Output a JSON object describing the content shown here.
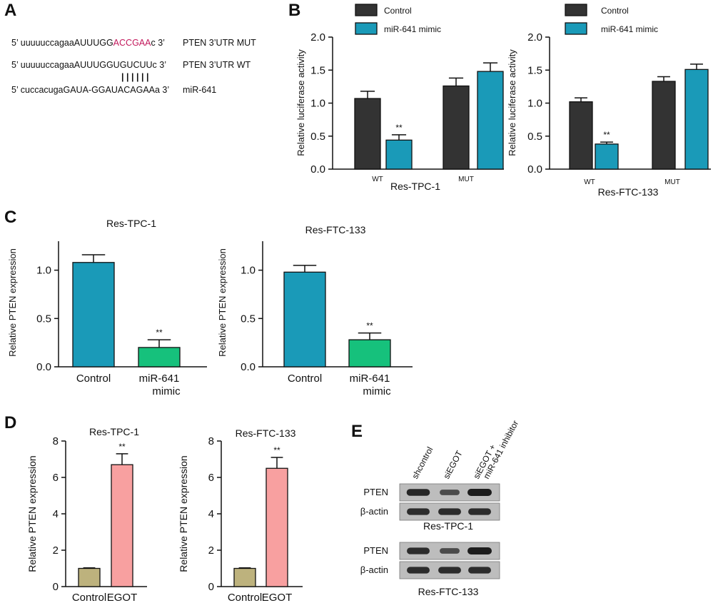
{
  "panel_letters": {
    "a": "A",
    "b": "B",
    "c": "C",
    "d": "D",
    "e": "E"
  },
  "panel_a": {
    "rows": [
      {
        "prefix": "5’ uuuuuccagaaAUUUGG",
        "highlight": "ACCGAA",
        "suffix": "c 3’",
        "label": "PTEN 3’UTR MUT"
      },
      {
        "prefix": "5’ uuuuuccagaaAUUUGGUGUCUUc 3’",
        "highlight": "",
        "suffix": "",
        "label": "PTEN 3’UTR WT"
      },
      {
        "prefix": "5’ cuccacugaGAUA-GGAUACAGAAa 3’",
        "highlight": "",
        "suffix": "",
        "label": "miR-641"
      }
    ],
    "pairing_lines": "||||||",
    "highlight_color": "#C2185B"
  },
  "colors": {
    "control_dark": "#333333",
    "mimic_blue": "#1A9AB8",
    "control_blue": "#1A9AB8",
    "mimic_green": "#16C17C",
    "egot_control": "#BDB27D",
    "egot": "#F8A0A0"
  },
  "chart_data": [
    {
      "panel": "B",
      "type": "bar",
      "title": "Res-TPC-1",
      "xlabel": "",
      "ylabel": "Relative luciferase activity",
      "ylim": [
        0,
        2.0
      ],
      "yticks": [
        "0.0",
        "0.5",
        "1.0",
        "1.5",
        "2.0"
      ],
      "categories": [
        "WT",
        "MUT"
      ],
      "legend": [
        "Control",
        "miR-641 mimic"
      ],
      "series": [
        {
          "name": "Control",
          "values": [
            1.07,
            1.26
          ],
          "errors": [
            0.11,
            0.12
          ]
        },
        {
          "name": "miR-641 mimic",
          "values": [
            0.44,
            1.48
          ],
          "errors": [
            0.08,
            0.13
          ]
        }
      ],
      "annotations": [
        {
          "text": "**",
          "category": "WT",
          "series": "miR-641 mimic"
        }
      ]
    },
    {
      "panel": "B",
      "type": "bar",
      "title": "Res-FTC-133",
      "xlabel": "",
      "ylabel": "Relative luciferase activity",
      "ylim": [
        0,
        2.0
      ],
      "yticks": [
        "0.0",
        "0.5",
        "1.0",
        "1.5",
        "2.0"
      ],
      "categories": [
        "WT",
        "MUT"
      ],
      "legend": [
        "Control",
        "miR-641 mimic"
      ],
      "series": [
        {
          "name": "Control",
          "values": [
            1.02,
            1.33
          ],
          "errors": [
            0.06,
            0.07
          ]
        },
        {
          "name": "miR-641 mimic",
          "values": [
            0.38,
            1.51
          ],
          "errors": [
            0.03,
            0.08
          ]
        }
      ],
      "annotations": [
        {
          "text": "**",
          "category": "WT",
          "series": "miR-641 mimic"
        }
      ]
    },
    {
      "panel": "C",
      "type": "bar",
      "title": "Res-TPC-1",
      "xlabel": "",
      "ylabel": "Relative PTEN expression",
      "ylim": [
        0,
        1.3
      ],
      "yticks": [
        "0.0",
        "0.5",
        "1.0"
      ],
      "categories": [
        "Control",
        "miR-641\nmimic"
      ],
      "series": [
        {
          "name": "Relative PTEN expression",
          "values": [
            1.08,
            0.2
          ],
          "errors": [
            0.08,
            0.08
          ]
        }
      ],
      "annotations": [
        {
          "text": "**",
          "category": "miR-641\nmimic"
        }
      ]
    },
    {
      "panel": "C",
      "type": "bar",
      "title": "Res-FTC-133",
      "xlabel": "",
      "ylabel": "Relative PTEN expression",
      "ylim": [
        0,
        1.3
      ],
      "yticks": [
        "0.0",
        "0.5",
        "1.0"
      ],
      "categories": [
        "Control",
        "miR-641\nmimic"
      ],
      "series": [
        {
          "name": "Relative PTEN expression",
          "values": [
            0.98,
            0.28
          ],
          "errors": [
            0.07,
            0.07
          ]
        }
      ],
      "annotations": [
        {
          "text": "**",
          "category": "miR-641\nmimic"
        }
      ]
    },
    {
      "panel": "D",
      "type": "bar",
      "title": "Res-TPC-1",
      "xlabel": "",
      "ylabel": "Relative PTEN expression",
      "ylim": [
        0,
        8
      ],
      "yticks": [
        "0",
        "2",
        "4",
        "6",
        "8"
      ],
      "categories": [
        "Control",
        "EGOT"
      ],
      "series": [
        {
          "name": "Relative PTEN expression",
          "values": [
            1.0,
            6.7
          ],
          "errors": [
            0.03,
            0.6
          ]
        }
      ],
      "annotations": [
        {
          "text": "**",
          "category": "EGOT"
        }
      ]
    },
    {
      "panel": "D",
      "type": "bar",
      "title": "Res-FTC-133",
      "xlabel": "",
      "ylabel": "Relative PTEN expression",
      "ylim": [
        0,
        8
      ],
      "yticks": [
        "0",
        "2",
        "4",
        "6",
        "8"
      ],
      "categories": [
        "Control",
        "EGOT"
      ],
      "series": [
        {
          "name": "Relative PTEN expression",
          "values": [
            1.0,
            6.5
          ],
          "errors": [
            0.03,
            0.6
          ]
        }
      ],
      "annotations": [
        {
          "text": "**",
          "category": "EGOT"
        }
      ]
    }
  ],
  "panel_e": {
    "lanes": [
      "shcontrol",
      "siEGOT",
      "siEGOT +\nmiR-641 inhibitor"
    ],
    "blots": [
      {
        "title": "Res-TPC-1",
        "rows": [
          {
            "label": "PTEN",
            "intensities": [
              0.9,
              0.55,
              1.0
            ]
          },
          {
            "label": "β-actin",
            "intensities": [
              0.85,
              0.85,
              0.85
            ]
          }
        ]
      },
      {
        "title": "Res-FTC-133",
        "rows": [
          {
            "label": "PTEN",
            "intensities": [
              0.85,
              0.55,
              1.0
            ]
          },
          {
            "label": "β-actin",
            "intensities": [
              0.85,
              0.85,
              0.85
            ]
          }
        ]
      }
    ]
  }
}
